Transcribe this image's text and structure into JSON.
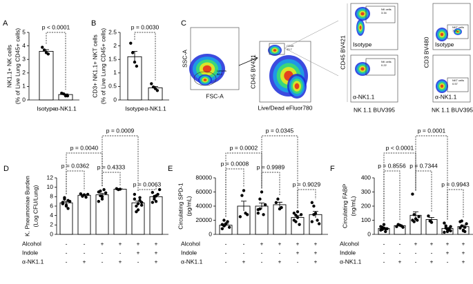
{
  "chart_data": [
    {
      "type": "bar",
      "panel": "A",
      "ylabel": [
        "NK1.1+ NK cells",
        "(% of Live Lung CD45+ cells)"
      ],
      "categories": [
        "Isotype",
        "α-NK1.1"
      ],
      "values": [
        3.6,
        0.4
      ],
      "errors": [
        0.12,
        0.05
      ],
      "points": [
        [
          3.9,
          3.7,
          3.5,
          3.4
        ],
        [
          0.5,
          0.45,
          0.3,
          0.3
        ]
      ],
      "ylim": [
        0,
        5
      ],
      "yticks": [
        0,
        1,
        2,
        3,
        4,
        5
      ],
      "color": "#ffffff",
      "edge_color": "#000000",
      "annotations": [
        "p < 0.0001"
      ]
    },
    {
      "type": "bar",
      "panel": "B",
      "ylabel": [
        "CD3+ NK1.1+ NKT cells",
        "(% of Live Lung CD45+ cells)"
      ],
      "categories": [
        "Isotype",
        "α-NK1.1"
      ],
      "values": [
        1.6,
        0.45
      ],
      "errors": [
        0.2,
        0.05
      ],
      "points": [
        [
          2.1,
          1.75,
          1.4,
          1.25
        ],
        [
          0.6,
          0.48,
          0.42,
          0.35
        ]
      ],
      "ylim": [
        0,
        2.5
      ],
      "yticks": [
        0,
        0.5,
        1,
        1.5,
        2,
        2.5
      ],
      "color": "#ffffff",
      "edge_color": "#000000",
      "annotations": [
        "p = 0.0030"
      ]
    },
    {
      "type": "bar",
      "panel": "D",
      "ylabel": [
        "K. Pneumoniae Burden",
        "(Log CFU/Lung)"
      ],
      "values": [
        6.7,
        8.3,
        8.4,
        9.6,
        6.7,
        8.0
      ],
      "errors": [
        0.3,
        0.15,
        0.3,
        0.05,
        0.35,
        0.3
      ],
      "points": [
        [
          6.8,
          7.5,
          6.2,
          5.5,
          7.0,
          6.5,
          7.8,
          6.0,
          7.2
        ],
        [
          8.6,
          8.1,
          8.4,
          7.9,
          8.5
        ],
        [
          9.0,
          8.2,
          7.5,
          9.5,
          8.8,
          7.0,
          9.2,
          8.0
        ],
        [
          9.7,
          9.5,
          9.6
        ],
        [
          7.5,
          6.0,
          5.2,
          7.8,
          6.8,
          8.5,
          4.8,
          6.5,
          7.2,
          6.2
        ],
        [
          8.9,
          7.5,
          7.0,
          8.5,
          9.5,
          6.8,
          8.0,
          8.2
        ]
      ],
      "ylim": [
        0,
        12
      ],
      "yticks": [
        0,
        2,
        4,
        6,
        8,
        10,
        12
      ],
      "color": "#ffffff",
      "edge_color": "#000000",
      "annotations": [
        "p = 0.0362",
        "p = 0.0040",
        "p = 0.4333",
        "p = 0.0009",
        "p = 0.0063"
      ],
      "conditions": [
        {
          "name": "Alcohol",
          "marks": [
            "-",
            "-",
            "+",
            "+",
            "+",
            "+"
          ]
        },
        {
          "name": "Indole",
          "marks": [
            "-",
            "-",
            "-",
            "-",
            "+",
            "+"
          ]
        },
        {
          "name": "α-NK1.1",
          "marks": [
            "-",
            "+",
            "-",
            "+",
            "-",
            "+"
          ]
        }
      ]
    },
    {
      "type": "bar",
      "panel": "E",
      "ylabel": [
        "Circulating SPD-1",
        "(pg/mL)"
      ],
      "values": [
        13000,
        40000,
        40000,
        42000,
        24000,
        28000
      ],
      "errors": [
        1800,
        7000,
        4500,
        3500,
        2500,
        4500
      ],
      "points": [
        [
          8000,
          12000,
          15000,
          18000,
          10000,
          14000,
          20000
        ],
        [
          25000,
          55000,
          62000,
          30000,
          28000
        ],
        [
          35000,
          50000,
          60000,
          28000,
          42000,
          30000,
          36000
        ],
        [
          45000,
          50000,
          36000,
          38000
        ],
        [
          30000,
          18000,
          24000,
          14000,
          28000,
          20000,
          27000,
          32000
        ],
        [
          45000,
          40000,
          30000,
          20000,
          15000,
          18000,
          28000
        ]
      ],
      "ylim": [
        0,
        80000
      ],
      "yticks": [
        0,
        20000,
        40000,
        60000,
        80000
      ],
      "color": "#ffffff",
      "edge_color": "#000000",
      "annotations": [
        "p = 0.0008",
        "p = 0.0002",
        "p = 0.9989",
        "p = 0.0345",
        "p = 0.9029"
      ],
      "conditions": [
        {
          "name": "Alcohol",
          "marks": [
            "-",
            "-",
            "+",
            "+",
            "+",
            "+"
          ]
        },
        {
          "name": "Indole",
          "marks": [
            "-",
            "-",
            "-",
            "-",
            "+",
            "+"
          ]
        },
        {
          "name": "α-NK1.1",
          "marks": [
            "-",
            "+",
            "-",
            "+",
            "-",
            "+"
          ]
        }
      ]
    },
    {
      "type": "bar",
      "panel": "F",
      "ylabel": [
        "Circulating FABP",
        "(ng/mL)"
      ],
      "values": [
        42,
        62,
        135,
        105,
        42,
        55
      ],
      "errors": [
        6,
        5,
        25,
        15,
        7,
        10
      ],
      "points": [
        [
          30,
          50,
          70,
          20,
          40,
          55,
          35,
          45,
          38
        ],
        [
          55,
          70,
          65,
          60,
          50
        ],
        [
          285,
          140,
          110,
          100,
          125,
          100,
          90
        ],
        [
          130,
          95,
          85
        ],
        [
          80,
          45,
          20,
          30,
          55,
          15,
          60,
          35,
          40,
          25
        ],
        [
          90,
          60,
          30,
          20,
          75,
          45,
          95,
          25,
          50
        ]
      ],
      "ylim": [
        0,
        400
      ],
      "yticks": [
        0,
        100,
        200,
        300,
        400
      ],
      "color": "#ffffff",
      "edge_color": "#000000",
      "annotations": [
        "p = 0.8556",
        "p < 0.0001",
        "p = 0.7344",
        "p = 0.0001",
        "p = 0.9943"
      ],
      "conditions": [
        {
          "name": "Alcohol",
          "marks": [
            "-",
            "-",
            "+",
            "+",
            "+",
            "+"
          ]
        },
        {
          "name": "Indole",
          "marks": [
            "-",
            "-",
            "-",
            "-",
            "+",
            "+"
          ]
        },
        {
          "name": "α-NK1.1",
          "marks": [
            "-",
            "+",
            "-",
            "+",
            "-",
            "+"
          ]
        }
      ]
    }
  ],
  "flow": {
    "panel": "C",
    "scatter": {
      "y": "SSC-A",
      "x": "FSC-A",
      "gate": "Lymphs",
      "gate_value": "88.2"
    },
    "live": {
      "y": "CD45 BV421",
      "x": "Live/Dead eFluor780",
      "gate": "CD45",
      "gate_value": "33.7"
    },
    "nk": {
      "y": "CD45 BV421",
      "x": "NK 1.1 BUV395",
      "gate": "NK cells",
      "isotype": "Isotype",
      "treated": "α-NK1.1",
      "isotype_value": "3.34",
      "treated_value": "0.22"
    },
    "nkt": {
      "y": "CD3 BV480",
      "x": "NK 1.1 BUV395",
      "gate": "NKT cells",
      "isotype": "Isotype",
      "treated": "α-NK1.1",
      "isotype_value": "7.21",
      "treated_value": "0.57"
    }
  }
}
